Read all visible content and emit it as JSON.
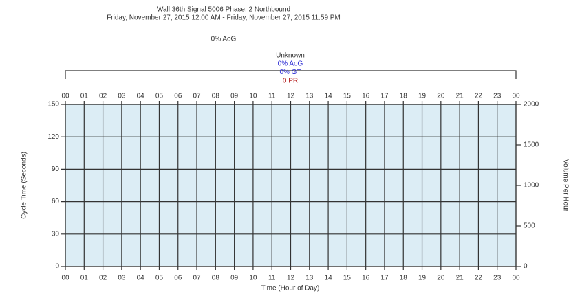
{
  "chart_data": {
    "type": "line",
    "title": "Wall 36th Signal 5006 Phase: 2 Northbound",
    "subtitle": "Friday, November 27, 2015 12:00 AM - Friday, November 27, 2015 11:59 PM",
    "summary": "0% AoG",
    "plan": {
      "name": "Unknown",
      "lines": [
        {
          "text": "0% AoG",
          "color": "#2b2bd4"
        },
        {
          "text": "0% GT",
          "color": "#2b2bd4"
        },
        {
          "text": "0 PR",
          "color": "#b52020"
        }
      ]
    },
    "x_label": "Time (Hour of Day)",
    "y_label": "Cycle Time (Seconds)",
    "y2_label": "Volume Per Hour",
    "xlim": [
      0,
      24
    ],
    "xticks": [
      {
        "value": 0,
        "label": "00"
      },
      {
        "value": 1,
        "label": "01"
      },
      {
        "value": 2,
        "label": "02"
      },
      {
        "value": 3,
        "label": "03"
      },
      {
        "value": 4,
        "label": "04"
      },
      {
        "value": 5,
        "label": "05"
      },
      {
        "value": 6,
        "label": "06"
      },
      {
        "value": 7,
        "label": "07"
      },
      {
        "value": 8,
        "label": "08"
      },
      {
        "value": 9,
        "label": "09"
      },
      {
        "value": 10,
        "label": "10"
      },
      {
        "value": 11,
        "label": "11"
      },
      {
        "value": 12,
        "label": "12"
      },
      {
        "value": 13,
        "label": "13"
      },
      {
        "value": 14,
        "label": "14"
      },
      {
        "value": 15,
        "label": "15"
      },
      {
        "value": 16,
        "label": "16"
      },
      {
        "value": 17,
        "label": "17"
      },
      {
        "value": 18,
        "label": "18"
      },
      {
        "value": 19,
        "label": "19"
      },
      {
        "value": 20,
        "label": "20"
      },
      {
        "value": 21,
        "label": "21"
      },
      {
        "value": 22,
        "label": "22"
      },
      {
        "value": 23,
        "label": "23"
      },
      {
        "value": 24,
        "label": "00"
      }
    ],
    "ylim": [
      0,
      150
    ],
    "yticks": [
      0,
      30,
      60,
      90,
      120,
      150
    ],
    "y2lim": [
      0,
      2000
    ],
    "y2ticks": [
      0,
      500,
      1000,
      1500,
      2000
    ],
    "grid": true,
    "plot_color": "#dcedf5",
    "series": []
  }
}
